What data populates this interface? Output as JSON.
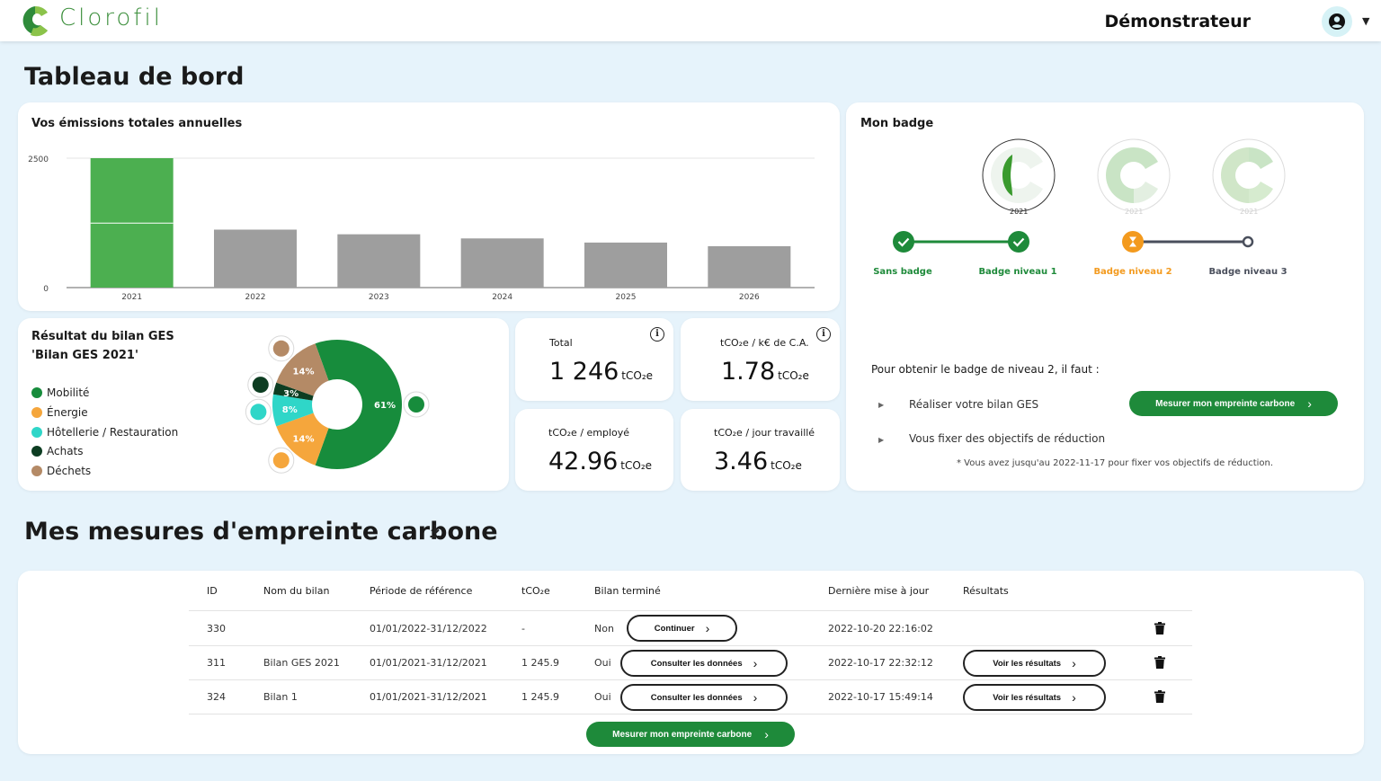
{
  "header": {
    "brand": "Clorofil",
    "user_name": "Démonstrateur"
  },
  "page_title": "Tableau de bord",
  "emissions_card": {
    "title": "Vos émissions totales annuelles"
  },
  "chart_data": {
    "type": "bar",
    "title": "Vos émissions totales annuelles",
    "categories": [
      "2021",
      "2022",
      "2023",
      "2024",
      "2025",
      "2026"
    ],
    "values": [
      2500,
      1120,
      1030,
      950,
      870,
      800
    ],
    "highlight_index": 0,
    "highlight_split": 1246,
    "colors": {
      "highlight": "#4caf50",
      "default": "#9e9e9e"
    },
    "y_ticks": [
      "0",
      "2500"
    ],
    "ylim": [
      0,
      2500
    ],
    "grid": false
  },
  "ges_card": {
    "title_line1": "Résultat du bilan GES",
    "title_line2": "'Bilan GES 2021'",
    "legend": [
      {
        "label": "Mobilité",
        "color": "#178c3c"
      },
      {
        "label": "Énergie",
        "color": "#f5a63c"
      },
      {
        "label": "Hôtellerie / Restauration",
        "color": "#2fd6c8"
      },
      {
        "label": "Achats",
        "color": "#0d3d22"
      },
      {
        "label": "Déchets",
        "color": "#b48a66"
      }
    ],
    "donut": [
      {
        "label": "61%",
        "value": 61,
        "color": "#178c3c"
      },
      {
        "label": "14%",
        "value": 14,
        "color": "#f5a63c"
      },
      {
        "label": "8%",
        "value": 8,
        "color": "#2fd6c8"
      },
      {
        "label": "3%",
        "value": 3,
        "color": "#0d3d22"
      },
      {
        "label": "14%",
        "value": 14,
        "color": "#b48a66"
      }
    ],
    "icons": [
      "truck-icon",
      "lightbulb-icon",
      "building-icon",
      "store-icon",
      "trash-icon"
    ]
  },
  "stats": {
    "unit": "tCO₂e",
    "total": {
      "label": "Total",
      "value": "1 246"
    },
    "per_ca": {
      "label": "tCO₂e / k€ de C.A.",
      "value": "1.78"
    },
    "per_employee": {
      "label": "tCO₂e / employé",
      "value": "42.96"
    },
    "per_day": {
      "label": "tCO₂e / jour travaillé",
      "value": "3.46"
    },
    "info_glyph": "i"
  },
  "badge_card": {
    "title": "Mon badge",
    "badge_years": [
      "2021",
      "2021",
      "2021"
    ],
    "steps": [
      {
        "label": "Sans badge",
        "color": "#1e8a3a"
      },
      {
        "label": "Badge niveau 1",
        "color": "#1e8a3a"
      },
      {
        "label": "Badge niveau 2",
        "color": "#f39a1e"
      },
      {
        "label": "Badge niveau 3",
        "color": "#4a4f5c"
      }
    ],
    "requirement_title": "Pour obtenir le badge de niveau 2, il faut :",
    "requirements": [
      "Réaliser votre bilan GES",
      "Vous fixer des objectifs de réduction"
    ],
    "measure_button": "Mesurer mon empreinte carbone",
    "note": "* Vous avez jusqu'au 2022-11-17 pour fixer vos objectifs de réduction."
  },
  "measures": {
    "title": "Mes mesures d'empreinte carbone",
    "columns": [
      "ID",
      "Nom du bilan",
      "Période de référence",
      "tCO₂e",
      "Bilan terminé",
      "Dernière mise à jour",
      "Résultats"
    ],
    "rows": [
      {
        "id": "330",
        "name": "",
        "period": "01/01/2022-31/12/2022",
        "tco2e": "-",
        "done": "Non",
        "action": "Continuer",
        "updated": "2022-10-20 22:16:02",
        "result": ""
      },
      {
        "id": "311",
        "name": "Bilan GES 2021",
        "period": "01/01/2021-31/12/2021",
        "tco2e": "1 245.9",
        "done": "Oui",
        "action": "Consulter les données",
        "updated": "2022-10-17 22:32:12",
        "result": "Voir les résultats"
      },
      {
        "id": "324",
        "name": "Bilan 1",
        "period": "01/01/2021-31/12/2021",
        "tco2e": "1 245.9",
        "done": "Oui",
        "action": "Consulter les données",
        "updated": "2022-10-17 15:49:14",
        "result": "Voir les résultats"
      }
    ],
    "measure_button": "Mesurer mon empreinte carbone"
  }
}
